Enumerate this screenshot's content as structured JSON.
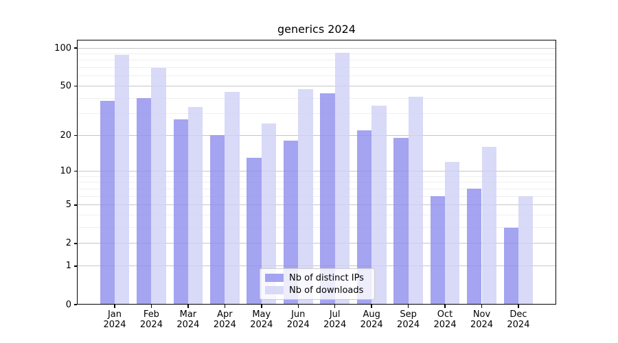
{
  "title": "generics 2024",
  "chart_data": {
    "type": "bar",
    "title": "generics 2024",
    "categories": [
      "Jan 2024",
      "Feb 2024",
      "Mar 2024",
      "Apr 2024",
      "May 2024",
      "Jun 2024",
      "Jul 2024",
      "Aug 2024",
      "Sep 2024",
      "Oct 2024",
      "Nov 2024",
      "Dec 2024"
    ],
    "series": [
      {
        "name": "Nb of distinct IPs",
        "color": "#8d8ded",
        "alpha": 0.8,
        "values": [
          38,
          40,
          27,
          20,
          13,
          18,
          44,
          22,
          19,
          6,
          7,
          3
        ]
      },
      {
        "name": "Nb of downloads",
        "color": "#cfcff6",
        "alpha": 0.8,
        "values": [
          88,
          70,
          34,
          45,
          25,
          47,
          92,
          35,
          41,
          12,
          16,
          6
        ]
      }
    ],
    "xlabel": "",
    "ylabel": "",
    "yscale": "log1p",
    "ylim": [
      0,
      117
    ],
    "y_major_ticks": [
      0,
      1,
      2,
      5,
      10,
      20,
      50,
      100
    ],
    "y_minor_gridlines": [
      3,
      4,
      6,
      7,
      8,
      9,
      30,
      40,
      60,
      70,
      80,
      90
    ],
    "grid": true,
    "legend_position": "lower center"
  },
  "legend": {
    "items": [
      {
        "label": "Nb of distinct IPs"
      },
      {
        "label": "Nb of downloads"
      }
    ]
  },
  "colors": {
    "bar_dark": "#8d8ded",
    "bar_light": "#cfcff6",
    "bar_dark_observed": "#a4a4f1",
    "bar_light_observed": "#d9d9f8",
    "grid_major": "#c6c6c6",
    "grid_minor": "#efefef",
    "spine": "#000000",
    "legend_border": "#cccccc",
    "background": "#ffffff"
  }
}
